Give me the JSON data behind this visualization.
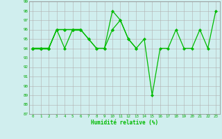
{
  "xlabel": "Humidité relative (%)",
  "x": [
    0,
    1,
    2,
    3,
    4,
    5,
    6,
    7,
    8,
    9,
    10,
    11,
    12,
    13,
    14,
    15,
    16,
    17,
    18,
    19,
    20,
    21,
    22,
    23
  ],
  "line1": [
    94,
    94,
    94,
    96,
    96,
    96,
    96,
    95,
    94,
    94,
    98,
    97,
    95,
    94,
    95,
    89,
    94,
    94,
    96,
    94,
    94,
    96,
    94,
    98
  ],
  "line2": [
    94,
    94,
    94,
    96,
    94,
    96,
    96,
    95,
    94,
    94,
    96,
    97,
    95,
    94,
    null,
    null,
    null,
    null,
    null,
    null,
    null,
    null,
    null,
    null
  ],
  "line3": [
    94,
    94,
    94,
    96,
    96,
    96,
    96,
    null,
    null,
    null,
    null,
    null,
    null,
    null,
    null,
    null,
    null,
    null,
    null,
    null,
    null,
    null,
    null,
    null
  ],
  "line4": [
    94,
    94,
    94,
    null,
    null,
    96,
    96,
    null,
    null,
    null,
    96,
    null,
    null,
    null,
    null,
    null,
    null,
    null,
    null,
    null,
    null,
    null,
    null,
    null
  ],
  "ylim": [
    87,
    99
  ],
  "yticks": [
    87,
    88,
    89,
    90,
    91,
    92,
    93,
    94,
    95,
    96,
    97,
    98,
    99
  ],
  "xticks": [
    0,
    1,
    2,
    3,
    4,
    5,
    6,
    7,
    8,
    9,
    10,
    11,
    12,
    13,
    14,
    15,
    16,
    17,
    18,
    19,
    20,
    21,
    22,
    23
  ],
  "line_color": "#00bb00",
  "bg_color": "#d0eeee",
  "grid_color": "#b0b0b0",
  "markersize": 2.2,
  "linewidth": 0.9
}
